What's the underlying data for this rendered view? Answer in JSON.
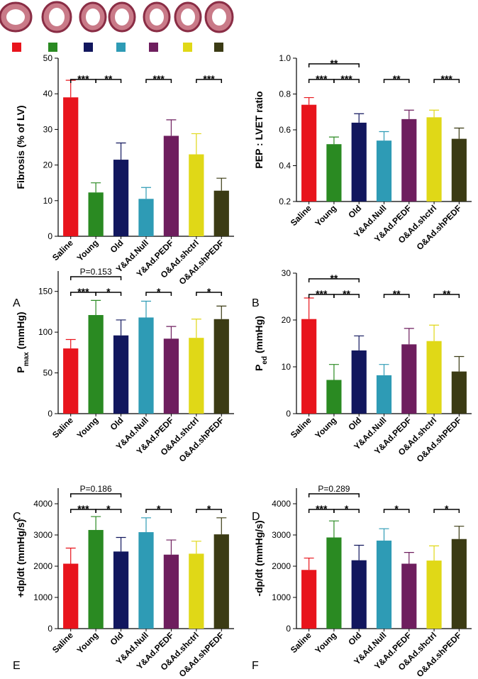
{
  "chart_data": [
    {
      "type": "bar",
      "panel_label": "A",
      "ylabel": "Fibrosis (% of LV)",
      "categories": [
        "Saline",
        "Young",
        "Old",
        "Y&Ad.Null",
        "Y&Ad.PEDF",
        "O&Ad.shctrl",
        "O&Ad.shPEDF"
      ],
      "values": [
        39,
        12.3,
        21.5,
        10.5,
        28.2,
        23,
        12.8
      ],
      "errors": [
        4.8,
        2.7,
        4.7,
        3.2,
        4.5,
        5.8,
        3.5
      ],
      "colors": [
        "#e8141c",
        "#2a8a22",
        "#12175e",
        "#2e9bb5",
        "#6e1e5e",
        "#e0d817",
        "#3b3b14"
      ],
      "ylim": [
        0,
        50
      ],
      "yticks": [
        0,
        10,
        20,
        30,
        40,
        50
      ],
      "brackets": [
        {
          "from": 0,
          "to": 1,
          "label": "***"
        },
        {
          "from": 1,
          "to": 2,
          "label": "**"
        },
        {
          "from": 3,
          "to": 4,
          "label": "***"
        },
        {
          "from": 5,
          "to": 6,
          "label": "***"
        }
      ]
    },
    {
      "type": "bar",
      "panel_label": "B",
      "ylabel": "PEP : LVET ratio",
      "categories": [
        "Saline",
        "Young",
        "Old",
        "Y&Ad.Null",
        "Y&Ad.PEDF",
        "O&Ad.shctrl",
        "O&Ad.shPEDF"
      ],
      "values": [
        0.74,
        0.52,
        0.64,
        0.54,
        0.66,
        0.67,
        0.55
      ],
      "errors": [
        0.04,
        0.04,
        0.05,
        0.05,
        0.05,
        0.04,
        0.06
      ],
      "colors": [
        "#e8141c",
        "#2a8a22",
        "#12175e",
        "#2e9bb5",
        "#6e1e5e",
        "#e0d817",
        "#3b3b14"
      ],
      "ylim": [
        0.2,
        1
      ],
      "yticks": [
        0.2,
        0.4,
        0.6,
        0.8,
        {
          "value": 1,
          "label": "1.0"
        }
      ],
      "brackets": [
        {
          "from": 0,
          "to": 2,
          "label": "**"
        },
        {
          "from": 0,
          "to": 1,
          "label": "***"
        },
        {
          "from": 1,
          "to": 2,
          "label": "***"
        },
        {
          "from": 3,
          "to": 4,
          "label": "**"
        },
        {
          "from": 5,
          "to": 6,
          "label": "***"
        }
      ]
    },
    {
      "type": "bar",
      "panel_label": "C",
      "ylabel": {
        "main": "P",
        "sub": "max",
        "unit": " (mmHg)"
      },
      "categories": [
        "Saline",
        "Young",
        "Old",
        "Y&Ad.Null",
        "Y&Ad.PEDF",
        "O&Ad.shctrl",
        "O&Ad.shPEDF"
      ],
      "values": [
        80,
        121,
        96,
        118,
        92,
        93,
        116
      ],
      "errors": [
        11,
        18,
        19,
        20,
        15,
        23,
        16
      ],
      "colors": [
        "#e8141c",
        "#2a8a22",
        "#12175e",
        "#2e9bb5",
        "#6e1e5e",
        "#e0d817",
        "#3b3b14"
      ],
      "ylim": [
        0,
        175
      ],
      "yticks": [
        0,
        50,
        100,
        150
      ],
      "brackets": [
        {
          "from": 0,
          "to": 2,
          "label": "P=0.153"
        },
        {
          "from": 0,
          "to": 1,
          "label": "***"
        },
        {
          "from": 1,
          "to": 2,
          "label": "*"
        },
        {
          "from": 3,
          "to": 4,
          "label": "*"
        },
        {
          "from": 5,
          "to": 6,
          "label": "*"
        }
      ]
    },
    {
      "type": "bar",
      "panel_label": "D",
      "ylabel": {
        "main": "P",
        "sub": "ed",
        "unit": " (mmHg)"
      },
      "categories": [
        "Saline",
        "Young",
        "Old",
        "Y&Ad.Null",
        "Y&Ad.PEDF",
        "O&Ad.shctrl",
        "O&Ad.shPEDF"
      ],
      "values": [
        20.2,
        7.2,
        13.5,
        8.2,
        14.8,
        15.5,
        9
      ],
      "errors": [
        4.5,
        3.3,
        3.1,
        2.3,
        3.4,
        3.4,
        3.2
      ],
      "colors": [
        "#e8141c",
        "#2a8a22",
        "#12175e",
        "#2e9bb5",
        "#6e1e5e",
        "#e0d817",
        "#3b3b14"
      ],
      "ylim": [
        0,
        30
      ],
      "yticks": [
        0,
        10,
        20,
        30
      ],
      "brackets": [
        {
          "from": 0,
          "to": 2,
          "label": "**"
        },
        {
          "from": 0,
          "to": 1,
          "label": "***"
        },
        {
          "from": 1,
          "to": 2,
          "label": "**"
        },
        {
          "from": 3,
          "to": 4,
          "label": "**"
        },
        {
          "from": 5,
          "to": 6,
          "label": "**"
        }
      ]
    },
    {
      "type": "bar",
      "panel_label": "E",
      "ylabel": "+dp/dt (mmHg/s)",
      "categories": [
        "Saline",
        "Young",
        "Old",
        "Y&Ad.Null",
        "Y&Ad.PEDF",
        "O&Ad.shctrl",
        "O&Ad.shPEDF"
      ],
      "values": [
        2080,
        3160,
        2470,
        3090,
        2370,
        2400,
        3020
      ],
      "errors": [
        500,
        430,
        450,
        460,
        470,
        400,
        530
      ],
      "colors": [
        "#e8141c",
        "#2a8a22",
        "#12175e",
        "#2e9bb5",
        "#6e1e5e",
        "#e0d817",
        "#3b3b14"
      ],
      "ylim": [
        0,
        4500
      ],
      "yticks": [
        0,
        1000,
        2000,
        3000,
        4000
      ],
      "brackets": [
        {
          "from": 0,
          "to": 2,
          "label": "P=0.186"
        },
        {
          "from": 0,
          "to": 1,
          "label": "***"
        },
        {
          "from": 1,
          "to": 2,
          "label": "*"
        },
        {
          "from": 3,
          "to": 4,
          "label": "*"
        },
        {
          "from": 5,
          "to": 6,
          "label": "*"
        }
      ]
    },
    {
      "type": "bar",
      "panel_label": "F",
      "ylabel": "-dp/dt (mmHg/s)",
      "categories": [
        "Saline",
        "Young",
        "Old",
        "Y&Ad.Null",
        "Y&Ad.PEDF",
        "O&Ad.shctrl",
        "O&Ad.shPEDF"
      ],
      "values": [
        1880,
        2920,
        2190,
        2820,
        2080,
        2180,
        2870
      ],
      "errors": [
        380,
        530,
        480,
        380,
        360,
        470,
        410
      ],
      "colors": [
        "#e8141c",
        "#2a8a22",
        "#12175e",
        "#2e9bb5",
        "#6e1e5e",
        "#e0d817",
        "#3b3b14"
      ],
      "ylim": [
        0,
        4500
      ],
      "yticks": [
        0,
        1000,
        2000,
        3000,
        4000
      ],
      "brackets": [
        {
          "from": 0,
          "to": 2,
          "label": "P=0.289"
        },
        {
          "from": 0,
          "to": 1,
          "label": "***"
        },
        {
          "from": 1,
          "to": 2,
          "label": "*"
        },
        {
          "from": 3,
          "to": 4,
          "label": "*"
        },
        {
          "from": 5,
          "to": 6,
          "label": "*"
        }
      ]
    }
  ]
}
